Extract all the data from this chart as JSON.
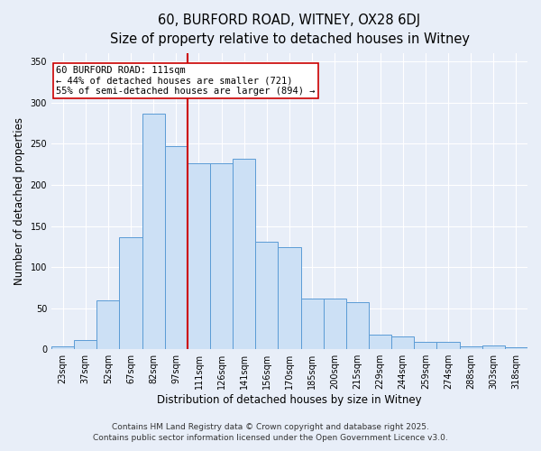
{
  "title1": "60, BURFORD ROAD, WITNEY, OX28 6DJ",
  "title2": "Size of property relative to detached houses in Witney",
  "xlabel": "Distribution of detached houses by size in Witney",
  "ylabel": "Number of detached properties",
  "bins": [
    "23sqm",
    "37sqm",
    "52sqm",
    "67sqm",
    "82sqm",
    "97sqm",
    "111sqm",
    "126sqm",
    "141sqm",
    "156sqm",
    "170sqm",
    "185sqm",
    "200sqm",
    "215sqm",
    "229sqm",
    "244sqm",
    "259sqm",
    "274sqm",
    "288sqm",
    "303sqm",
    "318sqm"
  ],
  "values": [
    3,
    11,
    59,
    136,
    287,
    247,
    226,
    226,
    232,
    131,
    124,
    62,
    62,
    57,
    18,
    16,
    9,
    9,
    3,
    5,
    2
  ],
  "bar_color": "#cce0f5",
  "bar_edge_color": "#5b9bd5",
  "vline_x_index": 6,
  "vline_color": "#cc0000",
  "annotation_text": "60 BURFORD ROAD: 111sqm\n← 44% of detached houses are smaller (721)\n55% of semi-detached houses are larger (894) →",
  "annotation_box_color": "#ffffff",
  "annotation_box_edge": "#cc0000",
  "ylim": [
    0,
    360
  ],
  "yticks": [
    0,
    50,
    100,
    150,
    200,
    250,
    300,
    350
  ],
  "footer1": "Contains HM Land Registry data © Crown copyright and database right 2025.",
  "footer2": "Contains public sector information licensed under the Open Government Licence v3.0.",
  "bg_color": "#e8eef8",
  "plot_bg_color": "#e8eef8",
  "title_fontsize": 10.5,
  "subtitle_fontsize": 9.5,
  "axis_label_fontsize": 8.5,
  "tick_fontsize": 7,
  "footer_fontsize": 6.5,
  "ann_fontsize": 7.5
}
